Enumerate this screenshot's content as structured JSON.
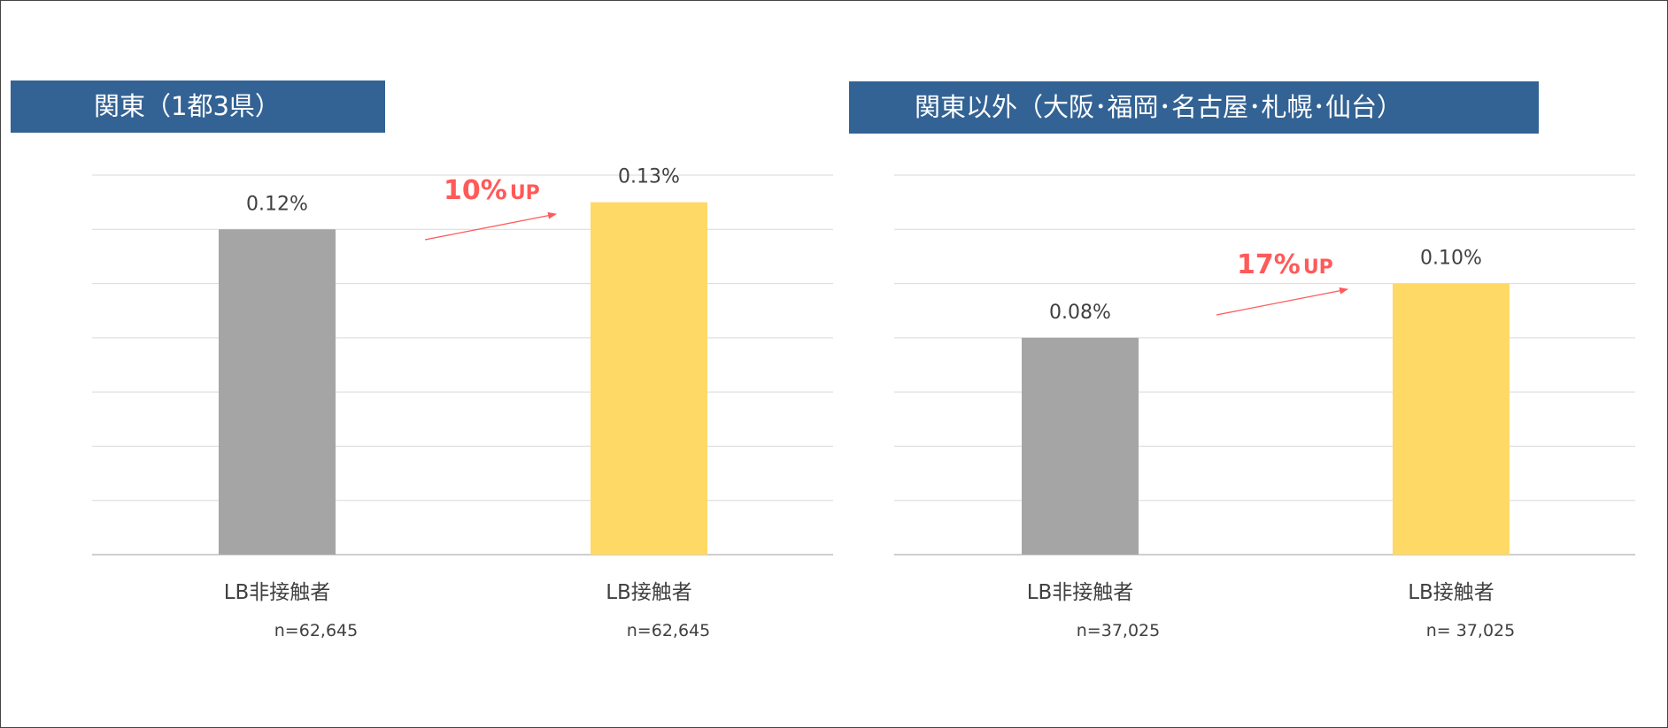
{
  "colors": {
    "title_bg": "#336294",
    "bar_non_contact": "#a5a5a5",
    "bar_contact": "#ffd966",
    "annotation": "#ff5a5a",
    "grid": "#d9d9d9",
    "text": "#404040"
  },
  "chart_data": [
    {
      "type": "bar",
      "title": "関東（1都3県）",
      "categories": [
        "LB非接触者",
        "LB接触者"
      ],
      "sample_sizes": [
        "n=62,645",
        "n=62,645"
      ],
      "values": [
        0.12,
        0.13
      ],
      "value_labels": [
        "0.12%",
        "0.13%"
      ],
      "annotation": {
        "number": "10%",
        "suffix": "UP"
      },
      "ylim": [
        0,
        0.14
      ],
      "grid": true
    },
    {
      "type": "bar",
      "title": "関東以外（大阪･福岡･名古屋･札幌･仙台）",
      "categories": [
        "LB非接触者",
        "LB接触者"
      ],
      "sample_sizes": [
        "n=37,025",
        "n= 37,025"
      ],
      "values": [
        0.08,
        0.1
      ],
      "value_labels": [
        "0.08%",
        "0.10%"
      ],
      "annotation": {
        "number": "17%",
        "suffix": "UP"
      },
      "ylim": [
        0,
        0.14
      ],
      "grid": true
    }
  ]
}
